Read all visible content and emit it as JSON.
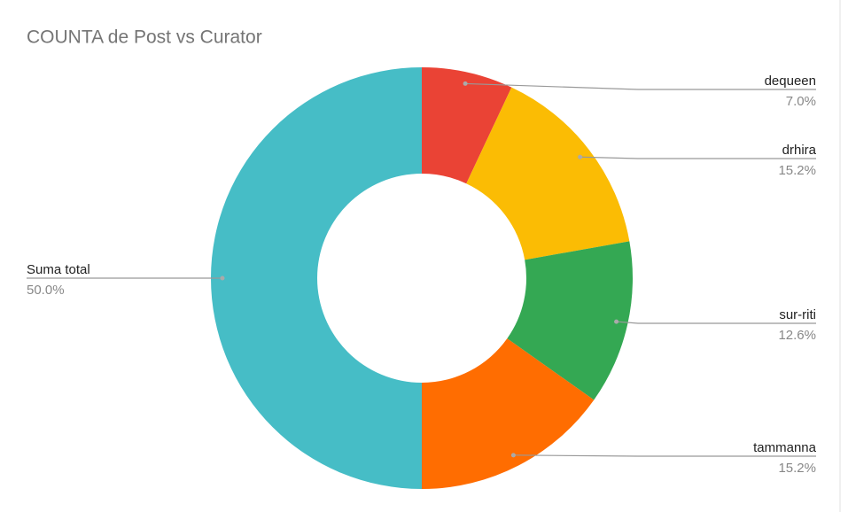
{
  "chart_data": {
    "type": "donut",
    "title": "COUNTA de Post vs Curator",
    "categories": [
      "dequeen",
      "drhira",
      "sur-riti",
      "tammanna",
      "Suma total"
    ],
    "values": [
      7.0,
      15.2,
      12.6,
      15.2,
      50.0
    ],
    "value_labels": [
      "7.0%",
      "15.2%",
      "12.6%",
      "15.2%",
      "50.0%"
    ],
    "colors": [
      "#ea4335",
      "#fbbc04",
      "#34a853",
      "#ff6d01",
      "#46bdc6"
    ]
  }
}
